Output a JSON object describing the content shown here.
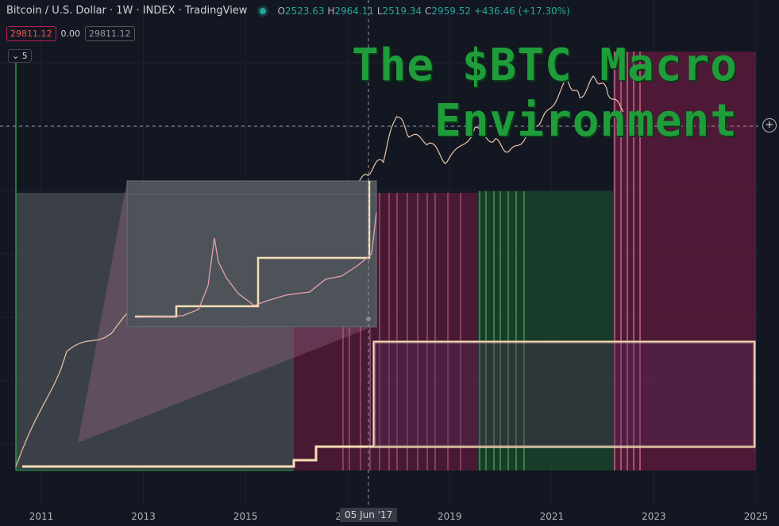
{
  "header": {
    "symbol": "Bitcoin / U.S. Dollar · 1W · INDEX · TradingView",
    "o_label": "O",
    "o_val": "2523.63",
    "h_label": "H",
    "h_val": "2964.11",
    "l_label": "L",
    "l_val": "2519.34",
    "c_label": "C",
    "c_val": "2959.52",
    "change": "+436.46 (+17.30%)",
    "status_color": "#26a69a"
  },
  "price_row": {
    "price": "29811.12",
    "zero": "0.00",
    "price2": "29811.12"
  },
  "legend_toggle": {
    "count": "5",
    "icon": "chevron-down-icon"
  },
  "title": {
    "line1": "The $BTC Macro",
    "line2": "Environment"
  },
  "crosshair": {
    "date": "05 Jun '17",
    "icon": "crosshair-plus-icon"
  },
  "x_axis": {
    "ticks": [
      "2011",
      "2013",
      "2015",
      "2017",
      "2019",
      "2021",
      "2023",
      "2025"
    ]
  },
  "colors": {
    "green": "#1f9d3a",
    "box": "#f5deb3",
    "pink": "#c2185b",
    "price_line": "#e8c4a8"
  },
  "chart_data": {
    "type": "line",
    "x": [
      2010.5,
      2011.5,
      2012.5,
      2013.5,
      2013.9,
      2014.5,
      2015.2,
      2015.9,
      2016.5,
      2017.0,
      2017.4,
      2017.7,
      2017.96,
      2018.2,
      2018.6,
      2018.95,
      2019.5,
      2019.9,
      2020.2,
      2020.6,
      2020.9,
      2021.3,
      2021.55,
      2021.85,
      2022.1,
      2022.4
    ],
    "y": [
      0.1,
      5,
      12,
      100,
      1000,
      600,
      250,
      430,
      650,
      1000,
      2500,
      4000,
      19000,
      9000,
      7000,
      3500,
      11000,
      7200,
      5000,
      11000,
      19000,
      60000,
      33000,
      67000,
      40000,
      20000
    ],
    "series_name": "",
    "xlim": [
      2010.5,
      2025
    ]
  }
}
